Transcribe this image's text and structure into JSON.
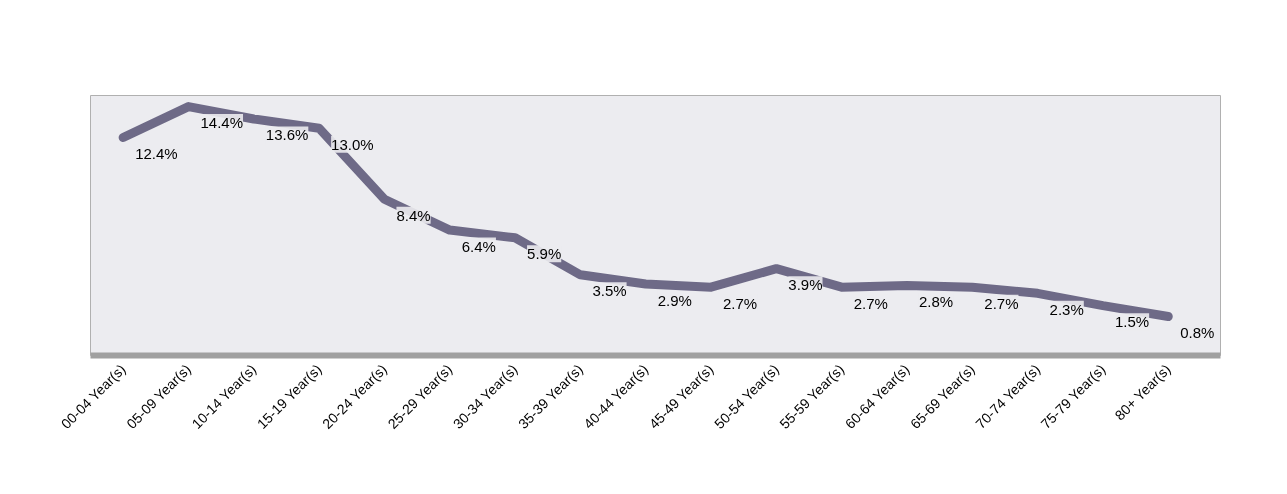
{
  "chart_data": {
    "type": "line",
    "categories": [
      "00-04 Year(s)",
      "05-09 Year(s)",
      "10-14 Year(s)",
      "15-19 Year(s)",
      "20-24 Year(s)",
      "25-29 Year(s)",
      "30-34 Year(s)",
      "35-39 Year(s)",
      "40-44 Year(s)",
      "45-49 Year(s)",
      "50-54 Year(s)",
      "55-59 Year(s)",
      "60-64 Year(s)",
      "65-69 Year(s)",
      "70-74 Year(s)",
      "75-79 Year(s)",
      "80+ Year(s)"
    ],
    "values": [
      12.4,
      14.4,
      13.6,
      13.0,
      8.4,
      6.4,
      5.9,
      3.5,
      2.9,
      2.7,
      3.9,
      2.7,
      2.8,
      2.7,
      2.3,
      1.5,
      0.8
    ],
    "value_labels": [
      "12.4%",
      "14.4%",
      "13.6%",
      "13.0%",
      "8.4%",
      "6.4%",
      "5.9%",
      "3.5%",
      "2.9%",
      "2.7%",
      "3.9%",
      "2.7%",
      "2.8%",
      "2.7%",
      "2.3%",
      "1.5%",
      "0.8%"
    ],
    "color": "#6e6a87"
  }
}
